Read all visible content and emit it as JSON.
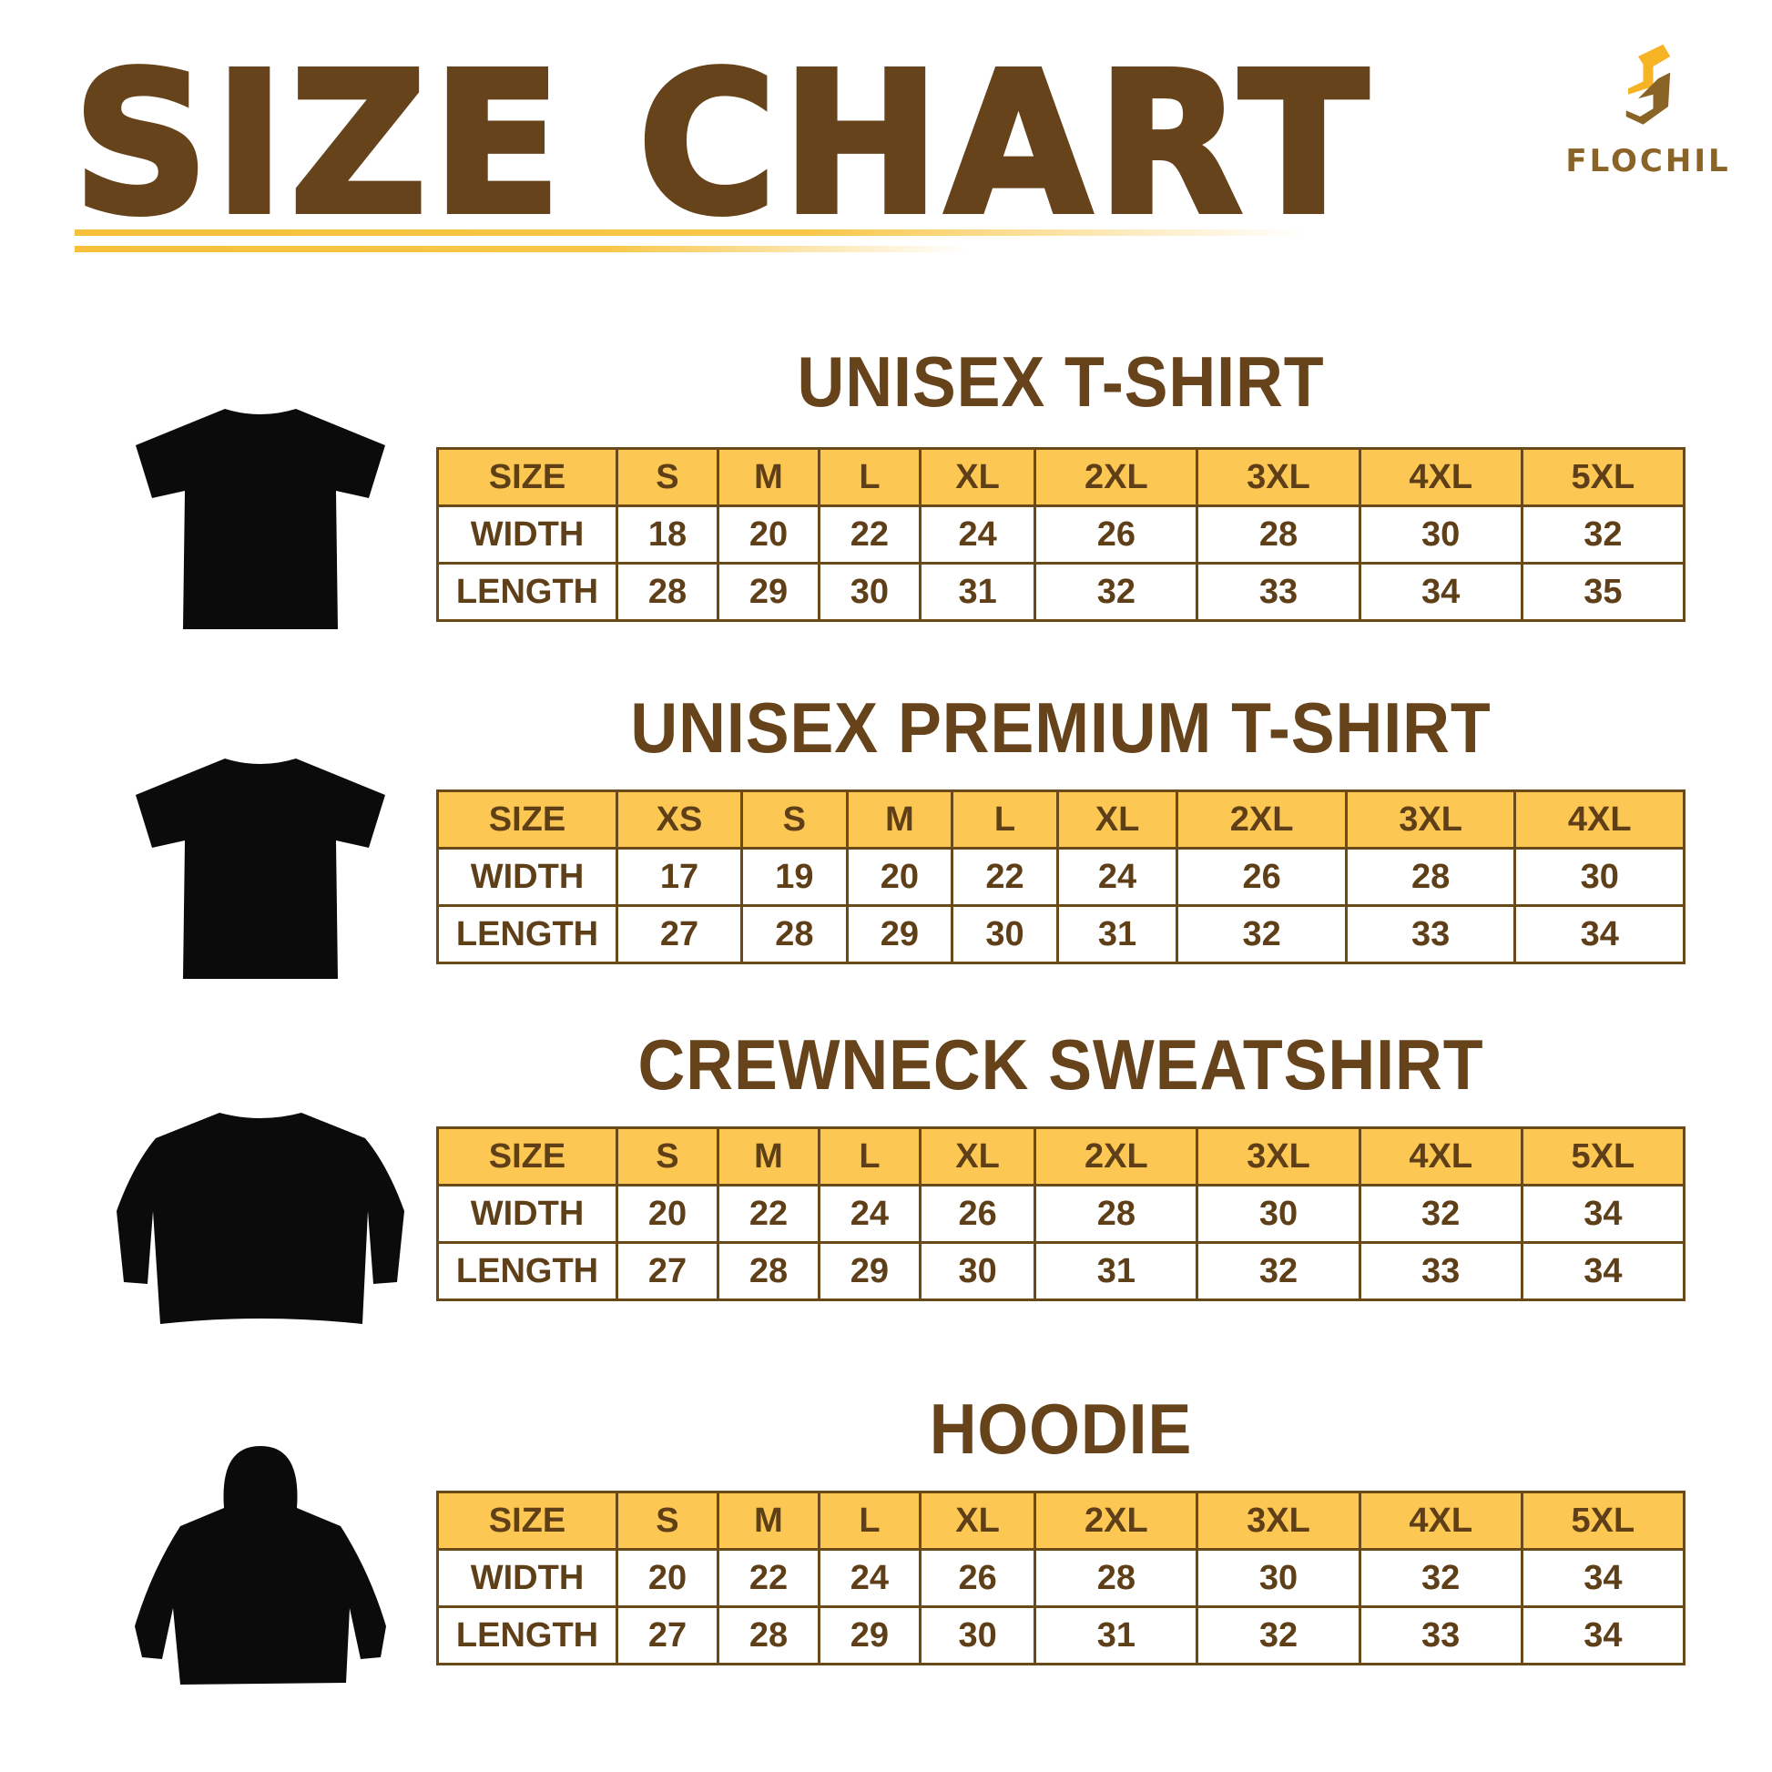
{
  "header": {
    "title": "SIZE CHART"
  },
  "logo": {
    "text": "FLOCHIL",
    "colors": {
      "yellow": "#f6b324",
      "brown": "#8a6326"
    }
  },
  "colors": {
    "title": "#66431a",
    "header_fill": "#fcc853",
    "border": "#6b4a1a"
  },
  "sections": [
    {
      "title": "UNISEX T-SHIRT",
      "icon": "tshirt-icon",
      "rows": [
        [
          "SIZE",
          "S",
          "M",
          "L",
          "XL",
          "2XL",
          "3XL",
          "4XL",
          "5XL"
        ],
        [
          "WIDTH",
          "18",
          "20",
          "22",
          "24",
          "26",
          "28",
          "30",
          "32"
        ],
        [
          "LENGTH",
          "28",
          "29",
          "30",
          "31",
          "32",
          "33",
          "34",
          "35"
        ]
      ]
    },
    {
      "title": "UNISEX PREMIUM T-SHIRT",
      "icon": "tshirt-icon",
      "rows": [
        [
          "SIZE",
          "XS",
          "S",
          "M",
          "L",
          "XL",
          "2XL",
          "3XL",
          "4XL"
        ],
        [
          "WIDTH",
          "17",
          "19",
          "20",
          "22",
          "24",
          "26",
          "28",
          "30"
        ],
        [
          "LENGTH",
          "27",
          "28",
          "29",
          "30",
          "31",
          "32",
          "33",
          "34"
        ]
      ]
    },
    {
      "title": "CREWNECK SWEATSHIRT",
      "icon": "sweatshirt-icon",
      "rows": [
        [
          "SIZE",
          "S",
          "M",
          "L",
          "XL",
          "2XL",
          "3XL",
          "4XL",
          "5XL"
        ],
        [
          "WIDTH",
          "20",
          "22",
          "24",
          "26",
          "28",
          "30",
          "32",
          "34"
        ],
        [
          "LENGTH",
          "27",
          "28",
          "29",
          "30",
          "31",
          "32",
          "33",
          "34"
        ]
      ]
    },
    {
      "title": "HOODIE",
      "icon": "hoodie-icon",
      "rows": [
        [
          "SIZE",
          "S",
          "M",
          "L",
          "XL",
          "2XL",
          "3XL",
          "4XL",
          "5XL"
        ],
        [
          "WIDTH",
          "20",
          "22",
          "24",
          "26",
          "28",
          "30",
          "32",
          "34"
        ],
        [
          "LENGTH",
          "27",
          "28",
          "29",
          "30",
          "31",
          "32",
          "33",
          "34"
        ]
      ]
    }
  ]
}
